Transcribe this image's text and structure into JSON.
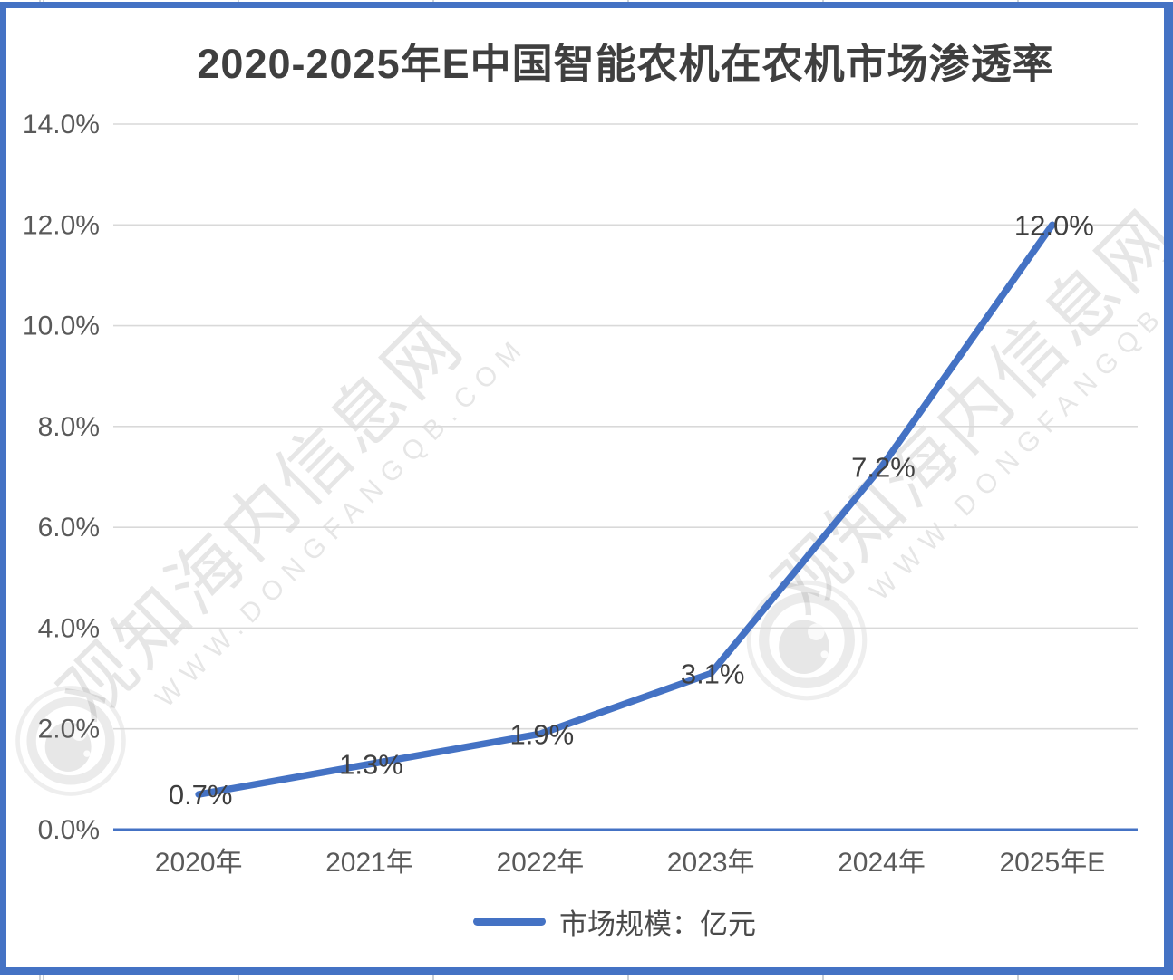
{
  "watermark": {
    "site_name_cn": "观知海内信息网",
    "site_url": "WWW.DONGFANGQB.COM"
  },
  "colors": {
    "line": "#4472C4",
    "frame": "#4472C4",
    "axis_line": "#4472C4",
    "grid": "#D9D9D9",
    "axis_text": "#595959",
    "label_text": "#3f3f3f",
    "title_text": "#3f3f3f",
    "legend_text": "#4a4a4a"
  },
  "chart_data": {
    "type": "line",
    "title": "2020-2025年E中国智能农机在农机市场渗透率",
    "categories": [
      "2020年",
      "2021年",
      "2022年",
      "2023年",
      "2024年",
      "2025年E"
    ],
    "series": [
      {
        "name": "市场规模：亿元",
        "values": [
          0.7,
          1.3,
          1.9,
          3.1,
          7.2,
          12.0
        ]
      }
    ],
    "data_labels": [
      "0.7%",
      "1.3%",
      "1.9%",
      "3.1%",
      "7.2%",
      "12.0%"
    ],
    "ylabel": "",
    "xlabel": "",
    "ylim": [
      0,
      14
    ],
    "ytick_step": 2,
    "yticks": [
      "0.0%",
      "2.0%",
      "4.0%",
      "6.0%",
      "8.0%",
      "10.0%",
      "12.0%",
      "14.0%"
    ],
    "grid": true,
    "legend_position": "bottom"
  }
}
